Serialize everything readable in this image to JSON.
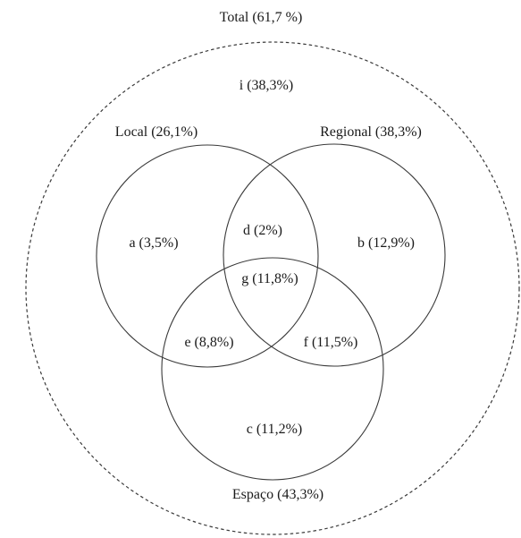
{
  "total_label": "Total (61,7 %)",
  "outside_label": "i (38,3%)",
  "sets": {
    "local": "Local (26,1%)",
    "regional": "Regional (38,3%)",
    "espaco": "Espaço (43,3%)"
  },
  "regions": {
    "a": "a (3,5%)",
    "b": "b (12,9%)",
    "c": "c (11,2%)",
    "d": "d (2%)",
    "e": "e (8,8%)",
    "f": "f (11,5%)",
    "g": "g (11,8%)"
  }
}
